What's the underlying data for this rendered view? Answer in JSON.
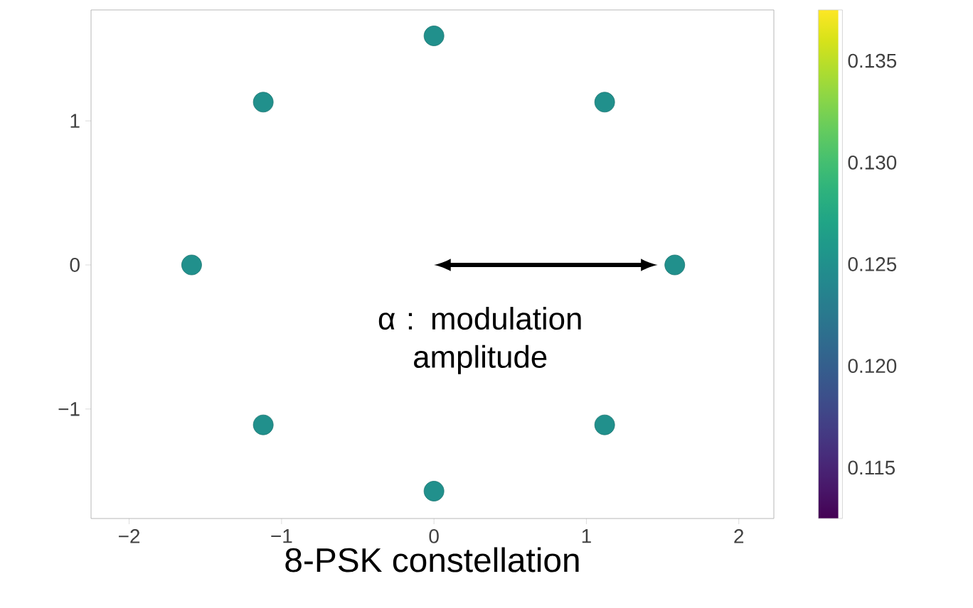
{
  "chart_data": {
    "type": "scatter",
    "xlabel": "8-PSK constellation",
    "annotations": [
      "α : modulation amplitude"
    ],
    "x": [
      1.58,
      1.12,
      0,
      -1.12,
      -1.59,
      -1.12,
      0,
      1.12
    ],
    "values": [
      0,
      1.13,
      1.59,
      1.13,
      0,
      -1.11,
      -1.57,
      -1.11
    ],
    "cvalues": [
      0.125,
      0.125,
      0.125,
      0.125,
      0.125,
      0.125,
      0.125,
      0.125
    ],
    "marker": "circle",
    "xlim": [
      -2.25,
      2.23
    ],
    "ylim": [
      -1.76,
      1.77
    ],
    "xticks": [
      {
        "value": -2,
        "label": "−2"
      },
      {
        "value": -1,
        "label": "−1"
      },
      0,
      1,
      2
    ],
    "yticks": [
      {
        "value": -1,
        "label": "−1"
      },
      0,
      1
    ],
    "clim": [
      0.1125,
      0.1375
    ],
    "cticks": [
      0.115,
      {
        "value": 0.12,
        "label": "0.120"
      },
      0.125,
      {
        "value": 0.13,
        "label": "0.130"
      },
      0.135
    ]
  }
}
